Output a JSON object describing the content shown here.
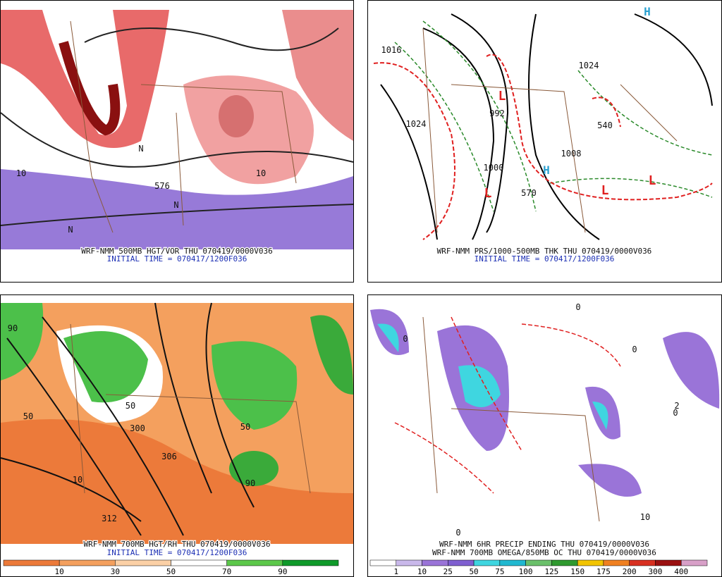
{
  "panels": [
    {
      "caption": "WRF-NMM 500MB HGT/VOR THU 070419/0000V036",
      "initial_time": "INITIAL TIME = 070417/1200F036",
      "labels": [
        "576",
        "10",
        "10",
        "N",
        "N",
        "N"
      ]
    },
    {
      "caption": "WRF-NMM PRS/1000-500MB THK THU 070419/0000V036",
      "initial_time": "INITIAL TIME = 070417/1200F036",
      "labels": [
        "1016",
        "1024",
        "992",
        "1000",
        "1008",
        "1024",
        "L",
        "L",
        "L",
        "L",
        "H",
        "H",
        "570",
        "540"
      ]
    },
    {
      "caption": "WRF-NMM 700MB HGT/RH THU 070419/0000V036",
      "initial_time": "INITIAL TIME = 070417/1200F036",
      "labels": [
        "90",
        "50",
        "50",
        "300",
        "306",
        "312",
        "10",
        "90",
        "50"
      ]
    },
    {
      "caption": "WRF-NMM 6HR PRECIP ENDING THU 070419/0000V036",
      "initial_time": "WRF-NMM 700MB OMEGA/850MB OC THU 070419/0000V036",
      "labels": [
        "0",
        "0",
        "0",
        "0",
        "2",
        "10",
        "0"
      ]
    }
  ],
  "colorbars": [
    {
      "ticks": [
        10,
        30,
        50,
        70,
        90
      ],
      "colors": [
        "#ec7a3a",
        "#f4a05e",
        "#fbd0a6",
        "#ffffff",
        "#5cc84a",
        "#0f9a2a"
      ]
    },
    {
      "ticks": [
        1,
        10,
        25,
        50,
        75,
        100,
        125,
        150,
        175,
        200,
        300,
        400
      ],
      "colors": [
        "#ffffff",
        "#c9b8ea",
        "#9a74d8",
        "#7f5fd0",
        "#3fd6e0",
        "#20b8d0",
        "#6ac06a",
        "#2f9a2f",
        "#f2c400",
        "#f08020",
        "#d83020",
        "#9a1010",
        "#d8a0c8"
      ]
    }
  ]
}
